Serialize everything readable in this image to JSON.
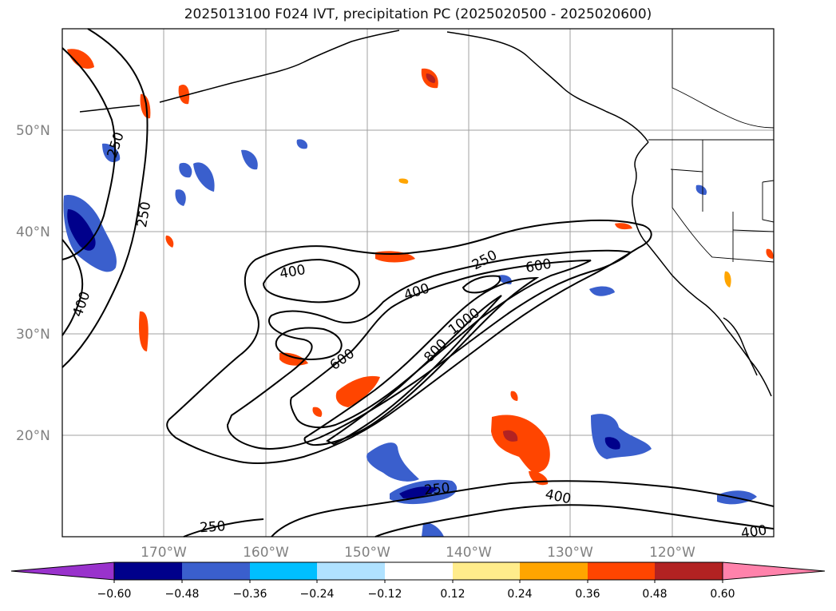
{
  "title": "2025013100 F024 IVT, precipitation PC (2025020500 - 2025020600)",
  "latitudes": [
    "50°N",
    "40°N",
    "30°N",
    "20°N"
  ],
  "longitudes": [
    "170°W",
    "160°W",
    "150°W",
    "140°W",
    "130°W",
    "120°W"
  ],
  "contour_labels": [
    "250",
    "250",
    "250",
    "250",
    "250",
    "400",
    "400",
    "400",
    "400",
    "400",
    "600",
    "600",
    "800",
    "1000"
  ],
  "colorbar": {
    "ticks": [
      "−0.60",
      "−0.48",
      "−0.36",
      "−0.24",
      "−0.12",
      "0.12",
      "0.24",
      "0.36",
      "0.48",
      "0.60"
    ],
    "colors": [
      "#9932cc",
      "#00008b",
      "#3a5fcd",
      "#00bfff",
      "#b0e2ff",
      "#ffffff",
      "#ffec8b",
      "#ffa500",
      "#ff4500",
      "#b22222",
      "#ff82ab"
    ]
  },
  "colors": {
    "land_outline": "#000000",
    "grid": "#a0a0a0"
  }
}
